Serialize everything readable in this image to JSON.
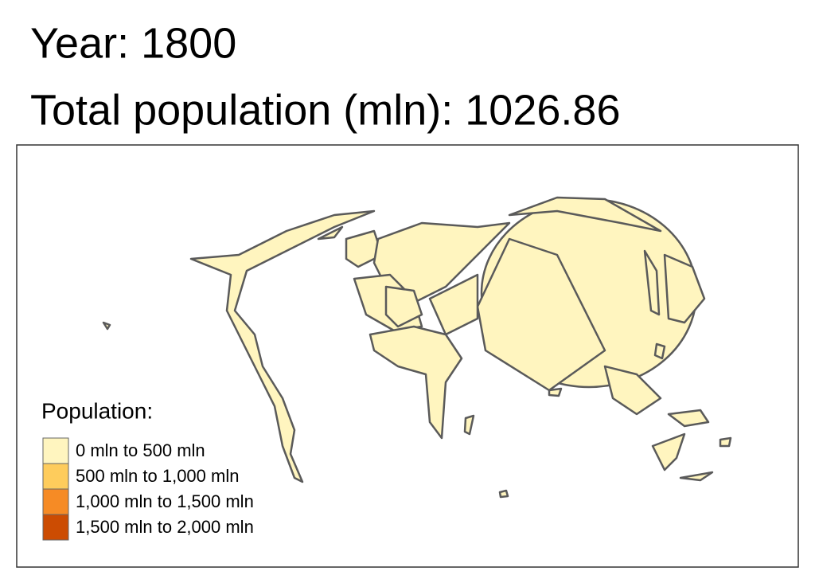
{
  "header": {
    "year": "Year: 1800",
    "total": "Total population (mln): 1026.86"
  },
  "legend": {
    "title": "Population:",
    "items": [
      {
        "label": "0 mln to 500 mln",
        "color": "#fff5bf"
      },
      {
        "label": "500 mln to 1,000 mln",
        "color": "#fecc5c"
      },
      {
        "label": "1,000 mln to 1,500 mln",
        "color": "#f68b25"
      },
      {
        "label": "1,500 mln to 2,000 mln",
        "color": "#cc4c02"
      }
    ]
  }
}
